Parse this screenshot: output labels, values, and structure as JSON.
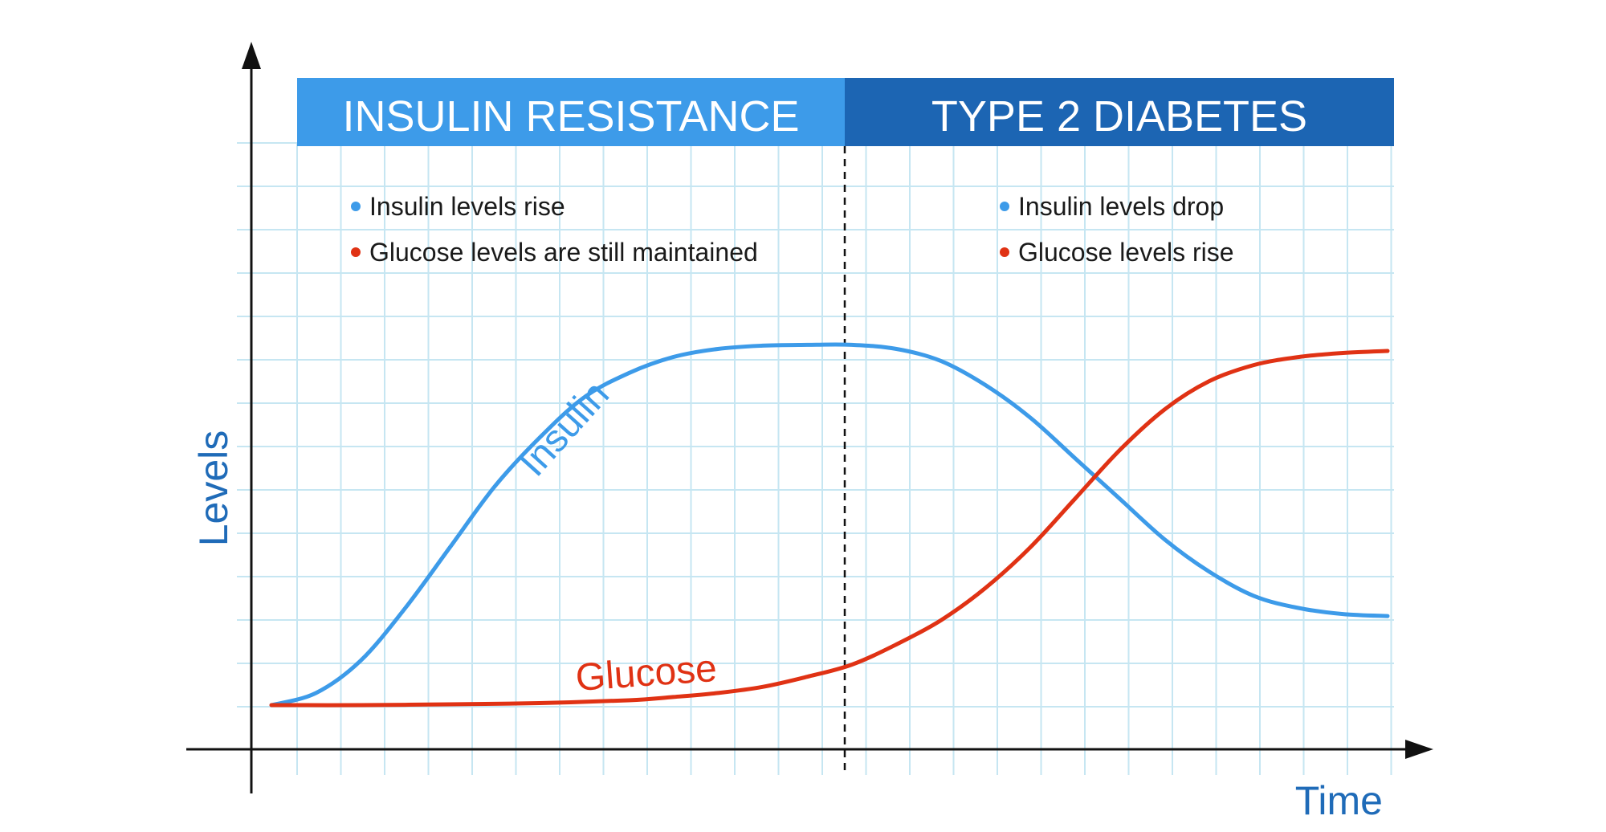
{
  "colors": {
    "insulin": "#3d9be9",
    "glucose": "#e03214",
    "phase_left": "#3d9be9",
    "phase_right": "#1c65b3",
    "grid": "#c6e6f2",
    "axis": "#111111",
    "axis_title": "#1f6bb8"
  },
  "phases": [
    {
      "label": "INSULIN RESISTANCE"
    },
    {
      "label": "TYPE 2 DIABETES"
    }
  ],
  "notes": {
    "left": [
      {
        "text": "Insulin levels rise",
        "color": "#3d9be9"
      },
      {
        "text": "Glucose levels are still maintained",
        "color": "#e03214"
      }
    ],
    "right": [
      {
        "text": "Insulin levels drop",
        "color": "#3d9be9"
      },
      {
        "text": "Glucose levels rise",
        "color": "#e03214"
      }
    ]
  },
  "chart_data": {
    "type": "line",
    "title": "",
    "xlabel": "Time",
    "ylabel": "Levels",
    "xlim": [
      0,
      100
    ],
    "ylim": [
      0,
      10
    ],
    "grid": true,
    "phase_boundary_x": 52,
    "series": [
      {
        "name": "Insulin",
        "color": "#3d9be9",
        "x": [
          0,
          4,
          8,
          12,
          16,
          20,
          24,
          28,
          32,
          36,
          40,
          44,
          48,
          52,
          56,
          60,
          64,
          68,
          72,
          76,
          80,
          84,
          88,
          92,
          96,
          100
        ],
        "y": [
          0.0,
          0.3,
          1.1,
          2.4,
          3.9,
          5.4,
          6.6,
          7.6,
          8.2,
          8.6,
          8.8,
          8.88,
          8.9,
          8.9,
          8.8,
          8.5,
          7.9,
          7.1,
          6.1,
          5.1,
          4.1,
          3.3,
          2.7,
          2.4,
          2.25,
          2.2
        ]
      },
      {
        "name": "Glucose",
        "color": "#e03214",
        "x": [
          0,
          8,
          16,
          24,
          32,
          36,
          40,
          44,
          48,
          52,
          56,
          60,
          64,
          68,
          72,
          76,
          80,
          84,
          88,
          92,
          96,
          100
        ],
        "y": [
          0.0,
          0.0,
          0.02,
          0.05,
          0.12,
          0.2,
          0.3,
          0.45,
          0.7,
          1.0,
          1.5,
          2.1,
          2.9,
          3.9,
          5.1,
          6.3,
          7.3,
          8.0,
          8.4,
          8.6,
          8.7,
          8.75
        ]
      }
    ]
  }
}
